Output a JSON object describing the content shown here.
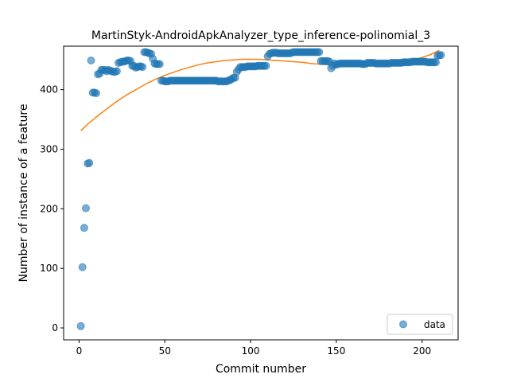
{
  "chart_data": {
    "type": "scatter",
    "title": "MartinStyk-AndroidApkAnalyzer_type_inference-polinomial_3",
    "xlabel": "Commit number",
    "ylabel": "Number of instance of a feature",
    "xlim": [
      -9,
      221
    ],
    "ylim": [
      -20,
      473
    ],
    "xticks": [
      0,
      50,
      100,
      150,
      200
    ],
    "yticks": [
      0,
      100,
      200,
      300,
      400
    ],
    "legend_position": "lower-right",
    "colors": {
      "data": "#1f77b4",
      "fit": "#ff7f0e"
    },
    "series": [
      {
        "name": "data",
        "kind": "scatter",
        "x": [
          1,
          2,
          3,
          4,
          5,
          6,
          7,
          8,
          9,
          10,
          11,
          12,
          13,
          14,
          15,
          16,
          17,
          18,
          19,
          20,
          21,
          22,
          23,
          24,
          25,
          26,
          27,
          28,
          29,
          30,
          31,
          32,
          33,
          34,
          35,
          36,
          37,
          38,
          39,
          40,
          41,
          42,
          43,
          44,
          45,
          46,
          47,
          48,
          49,
          50,
          51,
          52,
          53,
          54,
          55,
          56,
          57,
          58,
          59,
          60,
          61,
          62,
          63,
          64,
          65,
          66,
          67,
          68,
          69,
          70,
          71,
          72,
          73,
          74,
          75,
          76,
          77,
          78,
          79,
          80,
          81,
          82,
          83,
          84,
          85,
          86,
          87,
          88,
          89,
          90,
          91,
          92,
          93,
          94,
          95,
          96,
          97,
          98,
          99,
          100,
          101,
          102,
          103,
          104,
          105,
          106,
          107,
          108,
          109,
          110,
          111,
          112,
          113,
          114,
          115,
          116,
          117,
          118,
          119,
          120,
          121,
          122,
          123,
          124,
          125,
          126,
          127,
          128,
          129,
          130,
          131,
          132,
          133,
          134,
          135,
          136,
          137,
          138,
          139,
          140,
          141,
          142,
          143,
          144,
          145,
          146,
          147,
          148,
          149,
          150,
          151,
          152,
          153,
          154,
          155,
          156,
          157,
          158,
          159,
          160,
          161,
          162,
          163,
          164,
          165,
          166,
          167,
          168,
          169,
          170,
          171,
          172,
          173,
          174,
          175,
          176,
          177,
          178,
          179,
          180,
          181,
          182,
          183,
          184,
          185,
          186,
          187,
          188,
          189,
          190,
          191,
          192,
          193,
          194,
          195,
          196,
          197,
          198,
          199,
          200,
          201,
          202,
          203,
          204,
          205,
          206,
          207,
          208,
          209,
          210,
          211
        ],
        "y": [
          3,
          102,
          168,
          201,
          276,
          277,
          449,
          395,
          395,
          394,
          426,
          427,
          433,
          433,
          433,
          431,
          433,
          432,
          431,
          430,
          430,
          431,
          445,
          446,
          447,
          447,
          448,
          449,
          449,
          448,
          440,
          440,
          437,
          438,
          439,
          439,
          438,
          463,
          463,
          462,
          461,
          460,
          452,
          444,
          443,
          443,
          443,
          415,
          415,
          414,
          414,
          414,
          415,
          415,
          415,
          415,
          415,
          415,
          415,
          415,
          415,
          415,
          415,
          415,
          415,
          415,
          415,
          415,
          415,
          415,
          415,
          415,
          415,
          415,
          415,
          415,
          415,
          415,
          415,
          415,
          414,
          414,
          414,
          414,
          414,
          414,
          415,
          416,
          418,
          420,
          420,
          430,
          434,
          438,
          438,
          438,
          438,
          439,
          439,
          439,
          439,
          439,
          439,
          440,
          440,
          440,
          440,
          440,
          440,
          456,
          460,
          461,
          462,
          462,
          462,
          461,
          461,
          461,
          461,
          461,
          461,
          461,
          461,
          462,
          463,
          463,
          463,
          463,
          463,
          463,
          463,
          463,
          463,
          463,
          463,
          463,
          463,
          463,
          463,
          463,
          448,
          448,
          448,
          448,
          448,
          447,
          436,
          440,
          444,
          442,
          443,
          444,
          444,
          444,
          444,
          444,
          444,
          444,
          444,
          444,
          444,
          444,
          444,
          444,
          443,
          443,
          443,
          445,
          445,
          445,
          445,
          445,
          444,
          444,
          444,
          444,
          444,
          444,
          444,
          444,
          444,
          445,
          445,
          445,
          445,
          445,
          445,
          445,
          446,
          446,
          446,
          446,
          446,
          447,
          447,
          447,
          447,
          447,
          447,
          447,
          447,
          447,
          446,
          446,
          446,
          446,
          446,
          446,
          457,
          458,
          458
        ]
      },
      {
        "kind": "line",
        "x": [
          1,
          5,
          10,
          15,
          20,
          25,
          30,
          35,
          40,
          45,
          50,
          55,
          60,
          65,
          70,
          75,
          80,
          85,
          90,
          95,
          100,
          105,
          110,
          115,
          120,
          125,
          130,
          135,
          140,
          145,
          150,
          155,
          160,
          165,
          170,
          175,
          180,
          185,
          190,
          195,
          200,
          205,
          210
        ],
        "y": [
          331,
          342,
          354,
          365,
          376,
          386,
          395,
          403,
          411,
          418,
          424,
          429,
          434,
          438,
          442,
          445,
          447,
          449,
          450,
          451,
          451,
          451,
          450,
          449,
          448,
          447,
          446,
          444,
          443,
          442,
          441,
          440,
          440,
          440,
          440,
          441,
          442,
          444,
          446,
          450,
          454,
          459,
          466
        ]
      }
    ],
    "legend": [
      {
        "label": "data",
        "marker": "circle"
      }
    ]
  }
}
